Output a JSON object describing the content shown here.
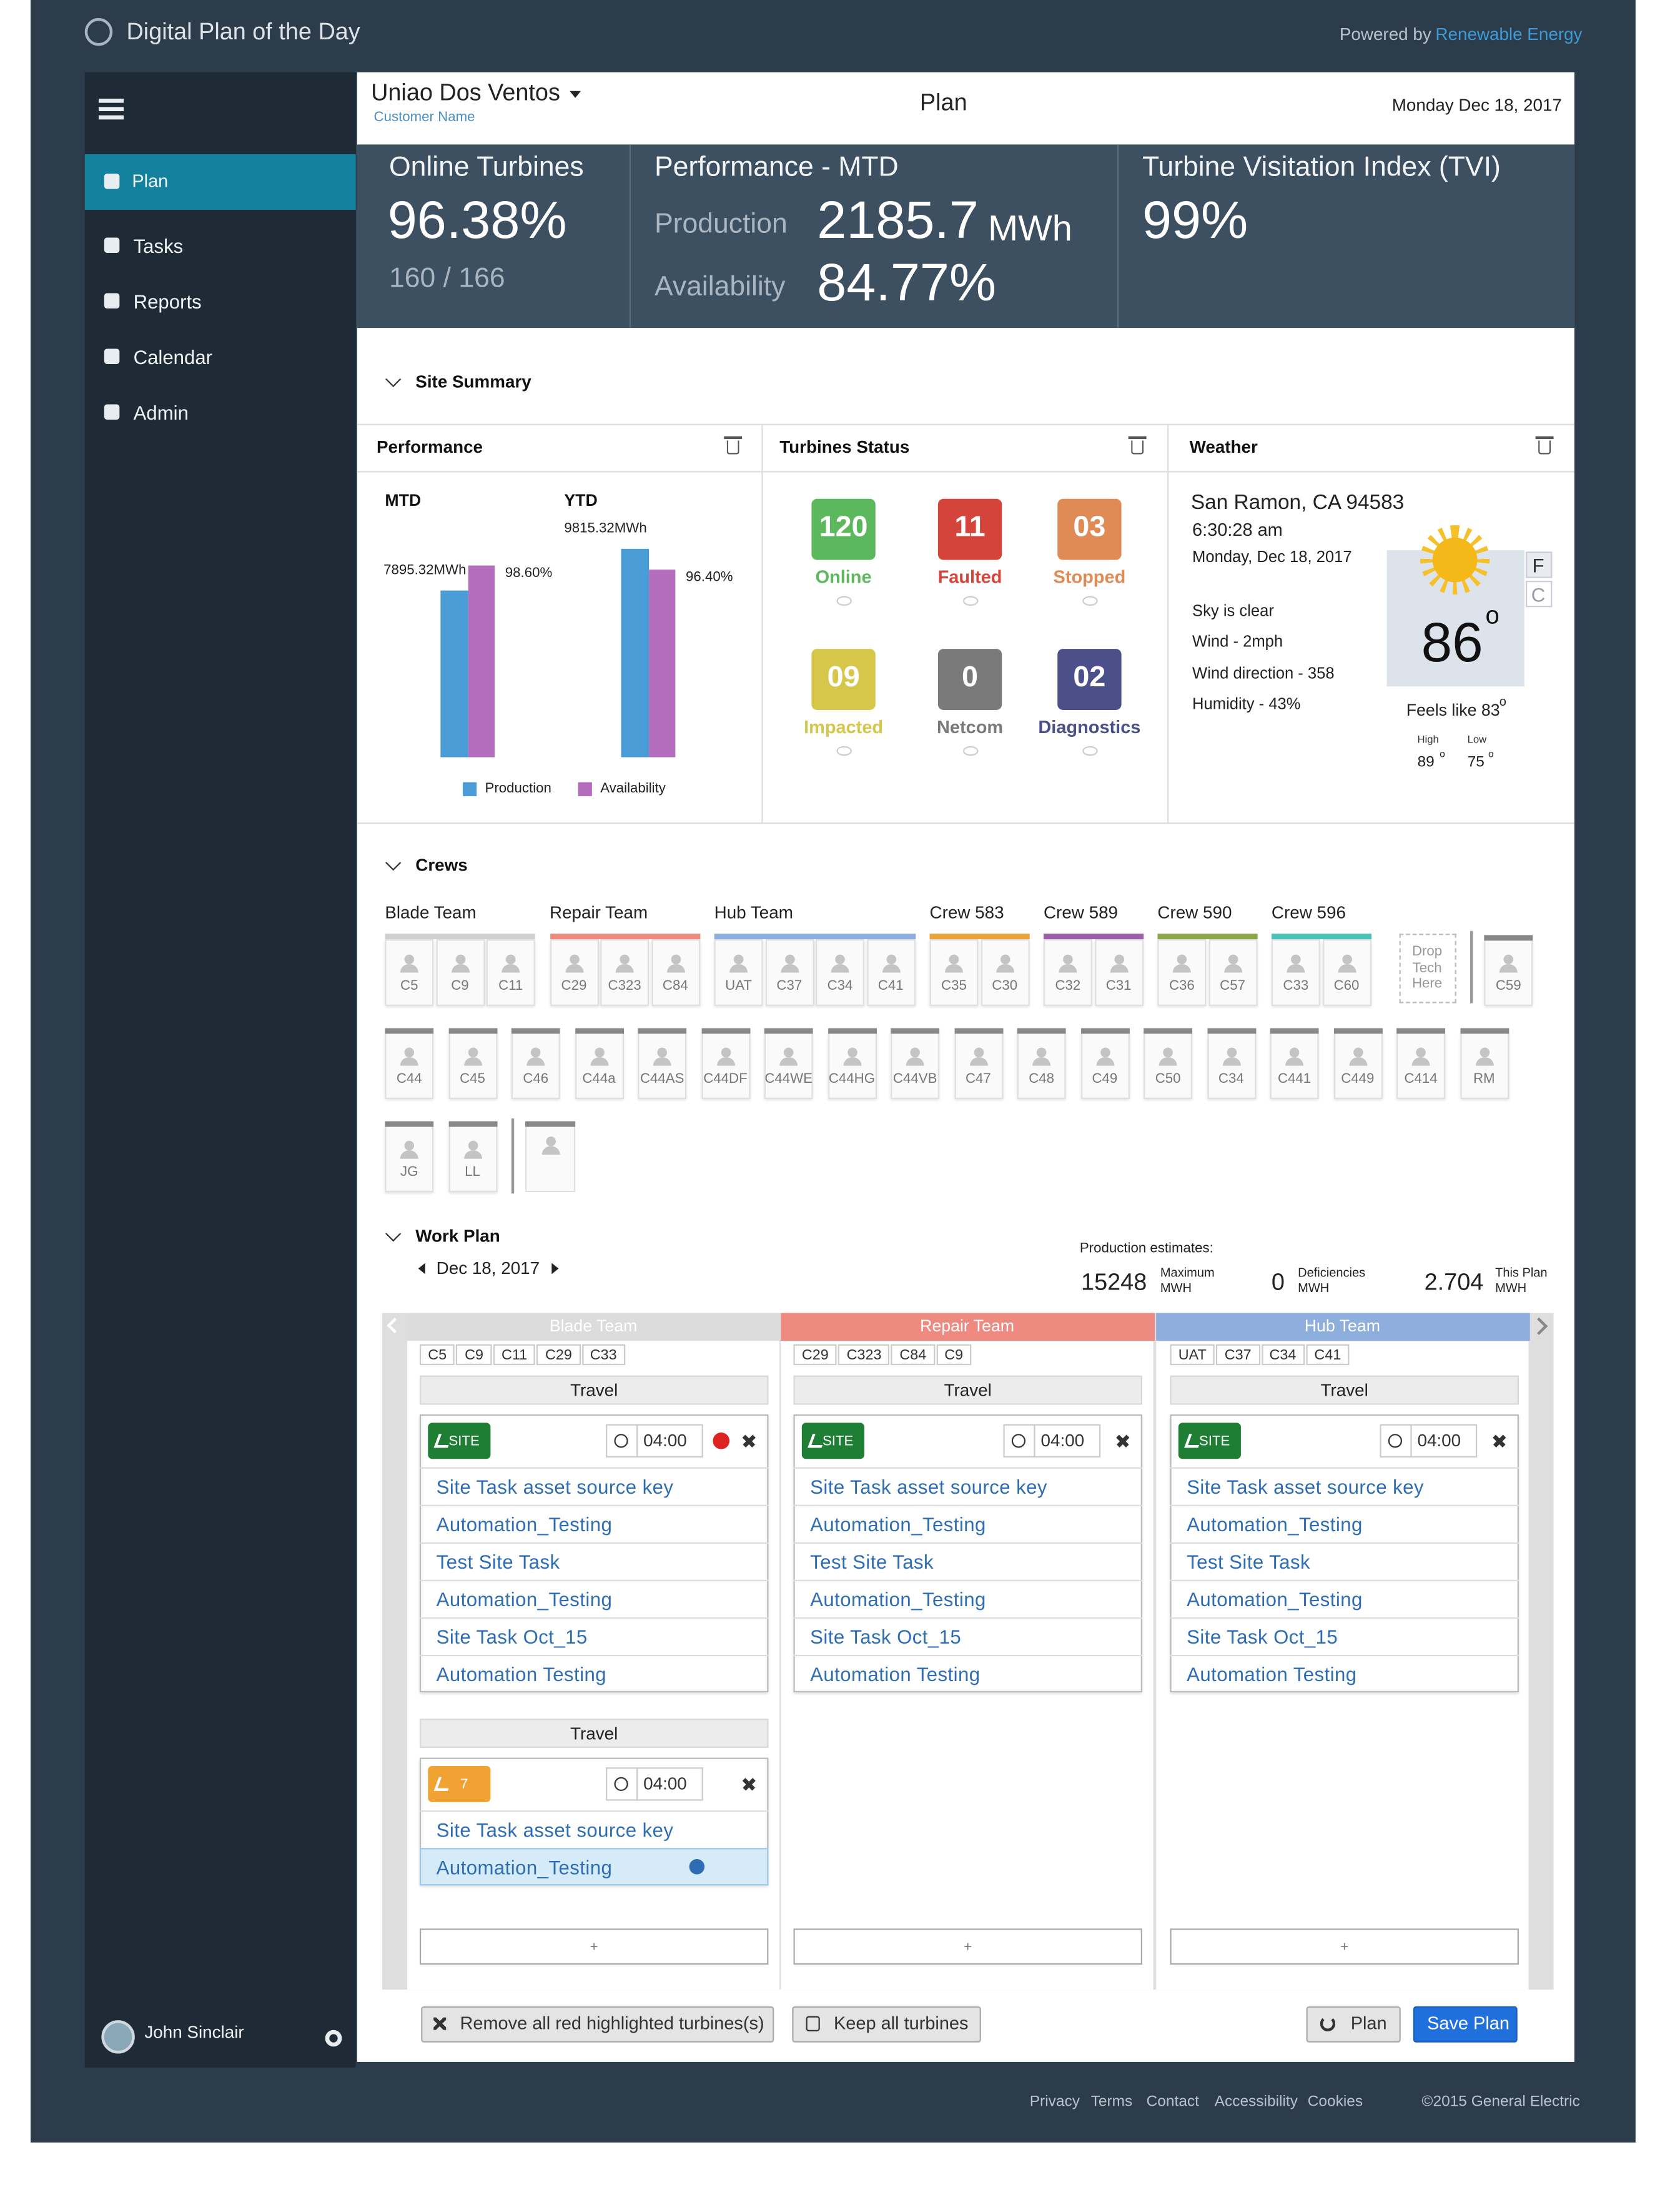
{
  "header": {
    "title": "Digital Plan of the Day",
    "powered_by": "Powered by",
    "brand": "Renewable Energy"
  },
  "nav": [
    "Plan",
    "Tasks",
    "Reports",
    "Calendar",
    "Admin"
  ],
  "user": "John Sinclair",
  "topbar": {
    "customer": "Uniao Dos Ventos",
    "customer_label": "Customer Name",
    "page": "Plan",
    "date": "Monday Dec 18, 2017"
  },
  "kpis": {
    "online": {
      "title": "Online Turbines",
      "value": "96.38%",
      "count": "160 / 166"
    },
    "performance": {
      "title": "Performance - MTD",
      "production_label": "Production",
      "production": "2185.7",
      "production_unit": "MWh",
      "availability_label": "Availability",
      "availability": "84.77%"
    },
    "tvi": {
      "title": "Turbine Visitation Index (TVI)",
      "value": "99%"
    }
  },
  "site_summary": "Site Summary",
  "performance_card": {
    "title": "Performance",
    "chart": {
      "type": "bar",
      "categories": [
        "MTD",
        "YTD"
      ],
      "series": [
        {
          "name": "Production",
          "color": "#4a9cd6",
          "values": [
            7895.32,
            9815.32
          ],
          "value_labels": [
            "7895.32MWh",
            "9815.32MWh"
          ],
          "ylim": [
            0,
            10500
          ]
        },
        {
          "name": "Availability",
          "color": "#b46cbc",
          "values": [
            98.6,
            96.4
          ],
          "value_labels": [
            "98.60%",
            "96.40%"
          ],
          "ylim": [
            0,
            100
          ]
        }
      ]
    }
  },
  "turbines_status": {
    "title": "Turbines Status",
    "items": [
      {
        "count": "120",
        "label": "Online",
        "color": "#5cb85c"
      },
      {
        "count": "11",
        "label": "Faulted",
        "color": "#d5443a"
      },
      {
        "count": "03",
        "label": "Stopped",
        "color": "#e08b55"
      },
      {
        "count": "09",
        "label": "Impacted",
        "color": "#d6c64a"
      },
      {
        "count": "0",
        "label": "Netcom",
        "color": "#7a7a7a"
      },
      {
        "count": "02",
        "label": "Diagnostics",
        "color": "#4b4f8a"
      }
    ]
  },
  "weather": {
    "title": "Weather",
    "location": "San Ramon, CA 94583",
    "time": "6:30:28 am",
    "date": "Monday, Dec 18, 2017",
    "details": [
      "Sky is clear",
      "Wind - 2mph",
      "Wind direction - 358",
      "Humidity - 43%"
    ],
    "temp": "86",
    "degree": "o",
    "units": [
      "F",
      "C"
    ],
    "feels": "Feels like 83",
    "high_label": "High",
    "high": "89",
    "low_label": "Low",
    "low": "75"
  },
  "crews": {
    "title": "Crews",
    "teams": [
      {
        "name": "Blade Team",
        "color": "#cfcfcf",
        "members": [
          "C5",
          "C9",
          "C11"
        ]
      },
      {
        "name": "Repair Team",
        "color": "#ef8a80",
        "members": [
          "C29",
          "C323",
          "C84"
        ]
      },
      {
        "name": "Hub Team",
        "color": "#8eaede",
        "members": [
          "UAT",
          "C37",
          "C34",
          "C41"
        ]
      },
      {
        "name": "Crew 583",
        "color": "#e8a33a",
        "members": [
          "C35",
          "C30"
        ]
      },
      {
        "name": "Crew 589",
        "color": "#9b5ea8",
        "members": [
          "C32",
          "C31"
        ]
      },
      {
        "name": "Crew 590",
        "color": "#8aa84a",
        "members": [
          "C36",
          "C57"
        ]
      },
      {
        "name": "Crew 596",
        "color": "#4cc1b8",
        "members": [
          "C33",
          "C60"
        ]
      }
    ],
    "drop": "Drop Tech Here",
    "standalone": "C59",
    "unassigned": [
      "C44",
      "C45",
      "C46",
      "C44a",
      "C44AS",
      "C44DF",
      "C44WE",
      "C44HG",
      "C44VB",
      "C47",
      "C48",
      "C49",
      "C50",
      "C34",
      "C441",
      "C449",
      "C414",
      "RM"
    ],
    "techs": [
      "JG",
      "LL"
    ]
  },
  "work_plan": {
    "title": "Work Plan",
    "date": "Dec 18, 2017",
    "estimates_label": "Production estimates:",
    "estimates": [
      {
        "value": "15248",
        "label": "Maximum",
        "unit": "MWH"
      },
      {
        "value": "0",
        "label": "Deficiencies",
        "unit": "MWH"
      },
      {
        "value": "2.704",
        "label": "This Plan",
        "unit": "MWH"
      }
    ],
    "columns": [
      {
        "team": "Blade Team",
        "color": "#dcdcdc",
        "chips": [
          "C5",
          "C9",
          "C11",
          "C29",
          "C33"
        ],
        "blocks": [
          {
            "travel": "Travel",
            "badge": "SITE",
            "time": "04:00",
            "tasks": [
              "Site Task asset source key",
              "Automation_Testing",
              "Test Site Task",
              "Automation_Testing",
              "Site Task Oct_15",
              "Automation Testing"
            ]
          },
          {
            "travel": "Travel",
            "badge": "7",
            "time": "04:00",
            "tasks": [
              "Site Task asset source key",
              "Automation_Testing"
            ]
          }
        ],
        "add": "+"
      },
      {
        "team": "Repair Team",
        "color": "#ef8a80",
        "chips": [
          "C29",
          "C323",
          "C84",
          "C9"
        ],
        "blocks": [
          {
            "travel": "Travel",
            "badge": "SITE",
            "time": "04:00",
            "tasks": [
              "Site Task asset source key",
              "Automation_Testing",
              "Test Site Task",
              "Automation_Testing",
              "Site Task Oct_15",
              "Automation Testing"
            ]
          }
        ],
        "add": "+"
      },
      {
        "team": "Hub Team",
        "color": "#8eaede",
        "chips": [
          "UAT",
          "C37",
          "C34",
          "C41"
        ],
        "blocks": [
          {
            "travel": "Travel",
            "badge": "SITE",
            "time": "04:00",
            "tasks": [
              "Site Task asset source key",
              "Automation_Testing",
              "Test Site Task",
              "Automation_Testing",
              "Site Task Oct_15",
              "Automation Testing"
            ]
          }
        ],
        "add": "+"
      }
    ]
  },
  "actions": {
    "remove": "Remove all red highlighted turbines(s)",
    "keep": "Keep all turbines",
    "plan": "Plan",
    "save": "Save Plan"
  },
  "footer": {
    "links": [
      "Privacy",
      "Terms",
      "Contact",
      "Accessibility",
      "Cookies"
    ],
    "copyright": "©2015 General Electric"
  }
}
